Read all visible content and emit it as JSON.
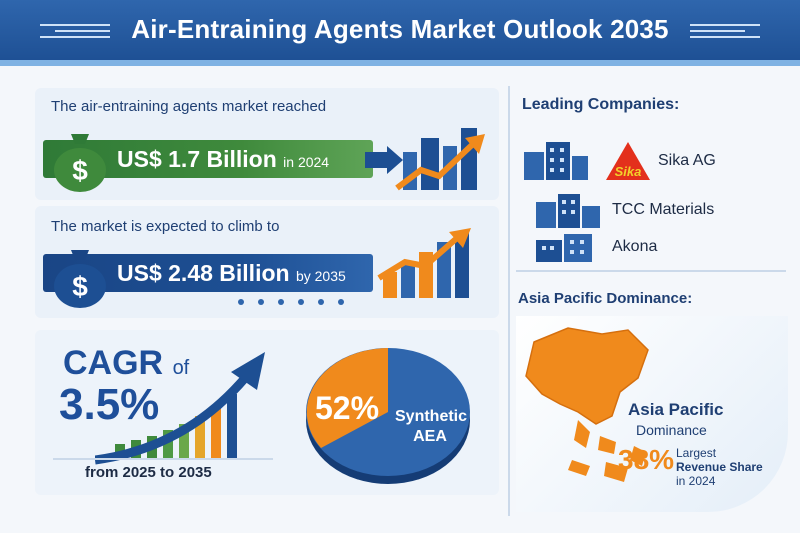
{
  "title": "Air-Entraining Agents Market Outlook 2035",
  "market_2024": {
    "heading": "The air-entraining agents market reached",
    "value": "US$ 1.7 Billion",
    "suffix": "in 2024"
  },
  "market_2035": {
    "heading": "The market is expected to climb to",
    "value": "US$ 2.48 Billion",
    "suffix": "by 2035"
  },
  "cagr": {
    "prefix": "CAGR",
    "of": "of",
    "value": "3.5%",
    "period": "from 2025 to 2035"
  },
  "segment": {
    "percent": "52%",
    "label_line1": "Synthetic",
    "label_line2": "AEA",
    "share": 0.52
  },
  "companies": {
    "heading": "Leading Companies:",
    "logo_text": "Sika",
    "items": [
      "Sika AG",
      "TCC Materials",
      "Akona"
    ]
  },
  "region": {
    "heading": "Asia Pacific Dominance:",
    "name": "Asia Pacific",
    "sub": "Dominance",
    "percent": "38%",
    "share_line1": "Largest",
    "share_line2": "Revenue Share",
    "share_line3": "in 2024"
  },
  "colors": {
    "navy": "#1d4f93",
    "green": "#3f8a3c",
    "orange": "#f08a1c",
    "accent_blue": "#7fb2e3"
  }
}
